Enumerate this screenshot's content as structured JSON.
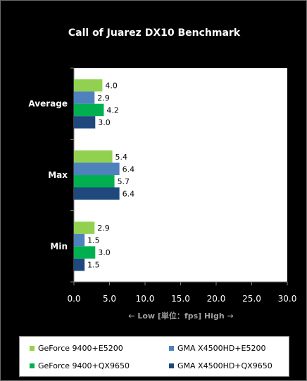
{
  "chart_data": {
    "type": "bar",
    "orientation": "horizontal",
    "title": "Call of Juarez DX10 Benchmark",
    "categories": [
      "Average",
      "Max",
      "Min"
    ],
    "series": [
      {
        "name": "GeForce 9400+E5200",
        "color": "#92d050",
        "values": [
          4.0,
          5.4,
          2.9
        ],
        "labels": [
          "4.0",
          "5.4",
          "2.9"
        ]
      },
      {
        "name": "GMA X4500HD+E5200",
        "color": "#4f81bd",
        "values": [
          2.9,
          6.4,
          1.5
        ],
        "labels": [
          "2.9",
          "6.4",
          "1.5"
        ]
      },
      {
        "name": "GeForce 9400+QX9650",
        "color": "#00b050",
        "values": [
          4.2,
          5.7,
          3.0
        ],
        "labels": [
          "4.2",
          "5.7",
          "3.0"
        ]
      },
      {
        "name": "GMA X4500HD+QX9650",
        "color": "#1f497d",
        "values": [
          3.0,
          6.4,
          1.5
        ],
        "labels": [
          "3.0",
          "6.4",
          "1.5"
        ]
      }
    ],
    "xlim": [
      0,
      30
    ],
    "xticks": [
      0,
      5,
      10,
      15,
      20,
      25,
      30
    ],
    "xtick_labels": [
      "0.0",
      "5.0",
      "10.0",
      "15.0",
      "20.0",
      "25.0",
      "30.0"
    ],
    "xlabel": "← Low [単位：fps] High →",
    "grid": false,
    "legend_position": "bottom"
  }
}
